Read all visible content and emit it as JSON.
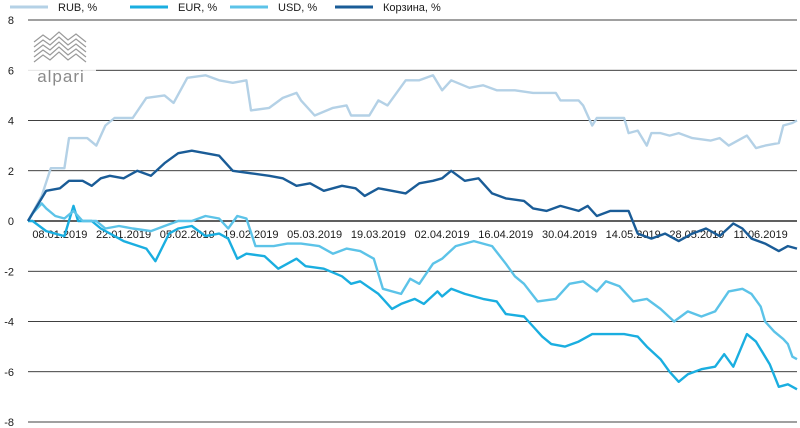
{
  "chart_data": {
    "type": "line",
    "title": "",
    "xlabel": "",
    "ylabel": "",
    "ylim": [
      -8,
      8
    ],
    "yticks": [
      -8,
      -6,
      -4,
      -2,
      0,
      2,
      4,
      6,
      8
    ],
    "x_tick_labels": [
      "08.01.2019",
      "22.01.2019",
      "05.02.2019",
      "19.02.2019",
      "05.03.2019",
      "19.03.2019",
      "02.04.2019",
      "16.04.2019",
      "30.04.2019",
      "14.05.2019",
      "28.05.2019",
      "11.06.2019"
    ],
    "x_range": [
      "2019-01-01",
      "2019-06-19"
    ],
    "grid": "horizontal",
    "legend_position": "top",
    "series": [
      {
        "name": "RUB, %",
        "color": "#b4d1e6",
        "points": [
          [
            "2019-01-01",
            0
          ],
          [
            "2019-01-04",
            1.0
          ],
          [
            "2019-01-06",
            2.1
          ],
          [
            "2019-01-09",
            2.1
          ],
          [
            "2019-01-10",
            3.3
          ],
          [
            "2019-01-14",
            3.3
          ],
          [
            "2019-01-16",
            3.0
          ],
          [
            "2019-01-18",
            3.8
          ],
          [
            "2019-01-20",
            4.1
          ],
          [
            "2019-01-24",
            4.1
          ],
          [
            "2019-01-27",
            4.9
          ],
          [
            "2019-01-31",
            5.0
          ],
          [
            "2019-02-02",
            4.7
          ],
          [
            "2019-02-05",
            5.7
          ],
          [
            "2019-02-09",
            5.8
          ],
          [
            "2019-02-12",
            5.6
          ],
          [
            "2019-02-15",
            5.5
          ],
          [
            "2019-02-18",
            5.6
          ],
          [
            "2019-02-19",
            4.4
          ],
          [
            "2019-02-23",
            4.5
          ],
          [
            "2019-02-26",
            4.9
          ],
          [
            "2019-03-01",
            5.1
          ],
          [
            "2019-03-02",
            4.8
          ],
          [
            "2019-03-05",
            4.2
          ],
          [
            "2019-03-09",
            4.5
          ],
          [
            "2019-03-12",
            4.6
          ],
          [
            "2019-03-13",
            4.2
          ],
          [
            "2019-03-17",
            4.2
          ],
          [
            "2019-03-19",
            4.8
          ],
          [
            "2019-03-21",
            4.6
          ],
          [
            "2019-03-25",
            5.6
          ],
          [
            "2019-03-28",
            5.6
          ],
          [
            "2019-03-31",
            5.8
          ],
          [
            "2019-04-02",
            5.2
          ],
          [
            "2019-04-04",
            5.6
          ],
          [
            "2019-04-08",
            5.3
          ],
          [
            "2019-04-11",
            5.4
          ],
          [
            "2019-04-14",
            5.2
          ],
          [
            "2019-04-18",
            5.2
          ],
          [
            "2019-04-22",
            5.1
          ],
          [
            "2019-04-27",
            5.1
          ],
          [
            "2019-04-28",
            4.8
          ],
          [
            "2019-05-02",
            4.8
          ],
          [
            "2019-05-03",
            4.6
          ],
          [
            "2019-05-05",
            3.8
          ],
          [
            "2019-05-06",
            4.1
          ],
          [
            "2019-05-12",
            4.1
          ],
          [
            "2019-05-13",
            3.5
          ],
          [
            "2019-05-15",
            3.6
          ],
          [
            "2019-05-17",
            3.0
          ],
          [
            "2019-05-18",
            3.5
          ],
          [
            "2019-05-20",
            3.5
          ],
          [
            "2019-05-22",
            3.4
          ],
          [
            "2019-05-24",
            3.5
          ],
          [
            "2019-05-27",
            3.3
          ],
          [
            "2019-05-31",
            3.2
          ],
          [
            "2019-06-02",
            3.3
          ],
          [
            "2019-06-04",
            3.0
          ],
          [
            "2019-06-08",
            3.4
          ],
          [
            "2019-06-10",
            2.9
          ],
          [
            "2019-06-12",
            3.0
          ],
          [
            "2019-06-15",
            3.1
          ],
          [
            "2019-06-16",
            3.8
          ],
          [
            "2019-06-18",
            3.9
          ],
          [
            "2019-06-19",
            4.0
          ]
        ]
      },
      {
        "name": "EUR, %",
        "color": "#1aaee0",
        "points": [
          [
            "2019-01-01",
            0
          ],
          [
            "2019-01-02",
            0.0
          ],
          [
            "2019-01-05",
            -0.4
          ],
          [
            "2019-01-09",
            -0.6
          ],
          [
            "2019-01-11",
            0.6
          ],
          [
            "2019-01-12",
            0.0
          ],
          [
            "2019-01-15",
            0.0
          ],
          [
            "2019-01-17",
            -0.3
          ],
          [
            "2019-01-22",
            -0.8
          ],
          [
            "2019-01-27",
            -1.1
          ],
          [
            "2019-01-29",
            -1.6
          ],
          [
            "2019-02-01",
            -0.5
          ],
          [
            "2019-02-03",
            -0.3
          ],
          [
            "2019-02-06",
            -0.2
          ],
          [
            "2019-02-09",
            -0.6
          ],
          [
            "2019-02-12",
            -0.5
          ],
          [
            "2019-02-14",
            -0.7
          ],
          [
            "2019-02-16",
            -1.5
          ],
          [
            "2019-02-18",
            -1.3
          ],
          [
            "2019-02-22",
            -1.4
          ],
          [
            "2019-02-25",
            -1.9
          ],
          [
            "2019-03-01",
            -1.5
          ],
          [
            "2019-03-03",
            -1.8
          ],
          [
            "2019-03-07",
            -1.9
          ],
          [
            "2019-03-11",
            -2.2
          ],
          [
            "2019-03-13",
            -2.5
          ],
          [
            "2019-03-15",
            -2.4
          ],
          [
            "2019-03-19",
            -2.9
          ],
          [
            "2019-03-22",
            -3.5
          ],
          [
            "2019-03-24",
            -3.3
          ],
          [
            "2019-03-27",
            -3.1
          ],
          [
            "2019-03-29",
            -3.3
          ],
          [
            "2019-04-01",
            -2.8
          ],
          [
            "2019-04-02",
            -3.0
          ],
          [
            "2019-04-04",
            -2.7
          ],
          [
            "2019-04-07",
            -2.9
          ],
          [
            "2019-04-11",
            -3.1
          ],
          [
            "2019-04-14",
            -3.2
          ],
          [
            "2019-04-16",
            -3.7
          ],
          [
            "2019-04-20",
            -3.8
          ],
          [
            "2019-04-22",
            -4.2
          ],
          [
            "2019-04-24",
            -4.6
          ],
          [
            "2019-04-26",
            -4.9
          ],
          [
            "2019-04-29",
            -5.0
          ],
          [
            "2019-05-02",
            -4.8
          ],
          [
            "2019-05-05",
            -4.5
          ],
          [
            "2019-05-08",
            -4.5
          ],
          [
            "2019-05-12",
            -4.5
          ],
          [
            "2019-05-15",
            -4.6
          ],
          [
            "2019-05-17",
            -5.0
          ],
          [
            "2019-05-20",
            -5.5
          ],
          [
            "2019-05-22",
            -6.0
          ],
          [
            "2019-05-24",
            -6.4
          ],
          [
            "2019-05-26",
            -6.1
          ],
          [
            "2019-05-29",
            -5.9
          ],
          [
            "2019-06-01",
            -5.8
          ],
          [
            "2019-06-03",
            -5.3
          ],
          [
            "2019-06-05",
            -5.8
          ],
          [
            "2019-06-08",
            -4.5
          ],
          [
            "2019-06-10",
            -4.8
          ],
          [
            "2019-06-13",
            -5.7
          ],
          [
            "2019-06-15",
            -6.6
          ],
          [
            "2019-06-17",
            -6.5
          ],
          [
            "2019-06-19",
            -6.7
          ]
        ]
      },
      {
        "name": "USD, %",
        "color": "#5cc3e8",
        "points": [
          [
            "2019-01-01",
            0
          ],
          [
            "2019-01-02",
            0.3
          ],
          [
            "2019-01-04",
            0.7
          ],
          [
            "2019-01-05",
            0.5
          ],
          [
            "2019-01-07",
            0.2
          ],
          [
            "2019-01-09",
            0.1
          ],
          [
            "2019-01-11",
            0.4
          ],
          [
            "2019-01-13",
            0.0
          ],
          [
            "2019-01-16",
            0.0
          ],
          [
            "2019-01-18",
            -0.3
          ],
          [
            "2019-01-21",
            -0.2
          ],
          [
            "2019-01-24",
            -0.3
          ],
          [
            "2019-01-28",
            -0.4
          ],
          [
            "2019-01-31",
            -0.2
          ],
          [
            "2019-02-03",
            0.0
          ],
          [
            "2019-02-06",
            0.0
          ],
          [
            "2019-02-09",
            0.2
          ],
          [
            "2019-02-12",
            0.1
          ],
          [
            "2019-02-14",
            -0.3
          ],
          [
            "2019-02-16",
            0.2
          ],
          [
            "2019-02-18",
            0.1
          ],
          [
            "2019-02-20",
            -1.0
          ],
          [
            "2019-02-24",
            -1.0
          ],
          [
            "2019-02-27",
            -0.9
          ],
          [
            "2019-03-02",
            -0.9
          ],
          [
            "2019-03-06",
            -1.0
          ],
          [
            "2019-03-09",
            -1.3
          ],
          [
            "2019-03-12",
            -1.1
          ],
          [
            "2019-03-15",
            -1.2
          ],
          [
            "2019-03-18",
            -1.5
          ],
          [
            "2019-03-20",
            -2.7
          ],
          [
            "2019-03-24",
            -2.9
          ],
          [
            "2019-03-26",
            -2.3
          ],
          [
            "2019-03-28",
            -2.5
          ],
          [
            "2019-03-31",
            -1.7
          ],
          [
            "2019-04-02",
            -1.5
          ],
          [
            "2019-04-05",
            -1.0
          ],
          [
            "2019-04-09",
            -0.8
          ],
          [
            "2019-04-13",
            -1.0
          ],
          [
            "2019-04-16",
            -1.7
          ],
          [
            "2019-04-18",
            -2.2
          ],
          [
            "2019-04-20",
            -2.5
          ],
          [
            "2019-04-23",
            -3.2
          ],
          [
            "2019-04-27",
            -3.1
          ],
          [
            "2019-04-30",
            -2.5
          ],
          [
            "2019-05-03",
            -2.4
          ],
          [
            "2019-05-06",
            -2.8
          ],
          [
            "2019-05-08",
            -2.4
          ],
          [
            "2019-05-11",
            -2.6
          ],
          [
            "2019-05-14",
            -3.2
          ],
          [
            "2019-05-17",
            -3.1
          ],
          [
            "2019-05-20",
            -3.5
          ],
          [
            "2019-05-23",
            -4.0
          ],
          [
            "2019-05-26",
            -3.6
          ],
          [
            "2019-05-29",
            -3.8
          ],
          [
            "2019-06-01",
            -3.6
          ],
          [
            "2019-06-04",
            -2.8
          ],
          [
            "2019-06-07",
            -2.7
          ],
          [
            "2019-06-09",
            -2.9
          ],
          [
            "2019-06-11",
            -3.4
          ],
          [
            "2019-06-12",
            -4.0
          ],
          [
            "2019-06-14",
            -4.4
          ],
          [
            "2019-06-16",
            -4.7
          ],
          [
            "2019-06-17",
            -4.9
          ],
          [
            "2019-06-18",
            -5.4
          ],
          [
            "2019-06-19",
            -5.5
          ]
        ]
      },
      {
        "name": "Корзина, %",
        "color": "#1a5c97",
        "points": [
          [
            "2019-01-01",
            0
          ],
          [
            "2019-01-03",
            0.6
          ],
          [
            "2019-01-05",
            1.2
          ],
          [
            "2019-01-08",
            1.3
          ],
          [
            "2019-01-10",
            1.6
          ],
          [
            "2019-01-13",
            1.6
          ],
          [
            "2019-01-15",
            1.4
          ],
          [
            "2019-01-17",
            1.7
          ],
          [
            "2019-01-19",
            1.8
          ],
          [
            "2019-01-22",
            1.7
          ],
          [
            "2019-01-25",
            2.0
          ],
          [
            "2019-01-28",
            1.8
          ],
          [
            "2019-01-31",
            2.3
          ],
          [
            "2019-02-03",
            2.7
          ],
          [
            "2019-02-06",
            2.8
          ],
          [
            "2019-02-09",
            2.7
          ],
          [
            "2019-02-12",
            2.6
          ],
          [
            "2019-02-15",
            2.0
          ],
          [
            "2019-02-19",
            1.9
          ],
          [
            "2019-02-23",
            1.8
          ],
          [
            "2019-02-26",
            1.7
          ],
          [
            "2019-03-01",
            1.4
          ],
          [
            "2019-03-04",
            1.5
          ],
          [
            "2019-03-07",
            1.2
          ],
          [
            "2019-03-11",
            1.4
          ],
          [
            "2019-03-14",
            1.3
          ],
          [
            "2019-03-16",
            1.0
          ],
          [
            "2019-03-19",
            1.3
          ],
          [
            "2019-03-22",
            1.2
          ],
          [
            "2019-03-25",
            1.1
          ],
          [
            "2019-03-28",
            1.5
          ],
          [
            "2019-03-31",
            1.6
          ],
          [
            "2019-04-02",
            1.7
          ],
          [
            "2019-04-04",
            2.0
          ],
          [
            "2019-04-07",
            1.6
          ],
          [
            "2019-04-10",
            1.7
          ],
          [
            "2019-04-13",
            1.1
          ],
          [
            "2019-04-16",
            0.9
          ],
          [
            "2019-04-20",
            0.8
          ],
          [
            "2019-04-22",
            0.5
          ],
          [
            "2019-04-25",
            0.4
          ],
          [
            "2019-04-28",
            0.6
          ],
          [
            "2019-05-02",
            0.4
          ],
          [
            "2019-05-04",
            0.6
          ],
          [
            "2019-05-06",
            0.2
          ],
          [
            "2019-05-09",
            0.4
          ],
          [
            "2019-05-13",
            0.4
          ],
          [
            "2019-05-15",
            -0.5
          ],
          [
            "2019-05-18",
            -0.7
          ],
          [
            "2019-05-21",
            -0.5
          ],
          [
            "2019-05-24",
            -0.8
          ],
          [
            "2019-05-27",
            -0.5
          ],
          [
            "2019-05-30",
            -0.3
          ],
          [
            "2019-06-02",
            -0.6
          ],
          [
            "2019-06-05",
            -0.1
          ],
          [
            "2019-06-07",
            -0.3
          ],
          [
            "2019-06-09",
            -0.7
          ],
          [
            "2019-06-12",
            -0.9
          ],
          [
            "2019-06-15",
            -1.2
          ],
          [
            "2019-06-17",
            -1.0
          ],
          [
            "2019-06-19",
            -1.1
          ]
        ]
      }
    ]
  },
  "logo": {
    "text": "alpari"
  }
}
